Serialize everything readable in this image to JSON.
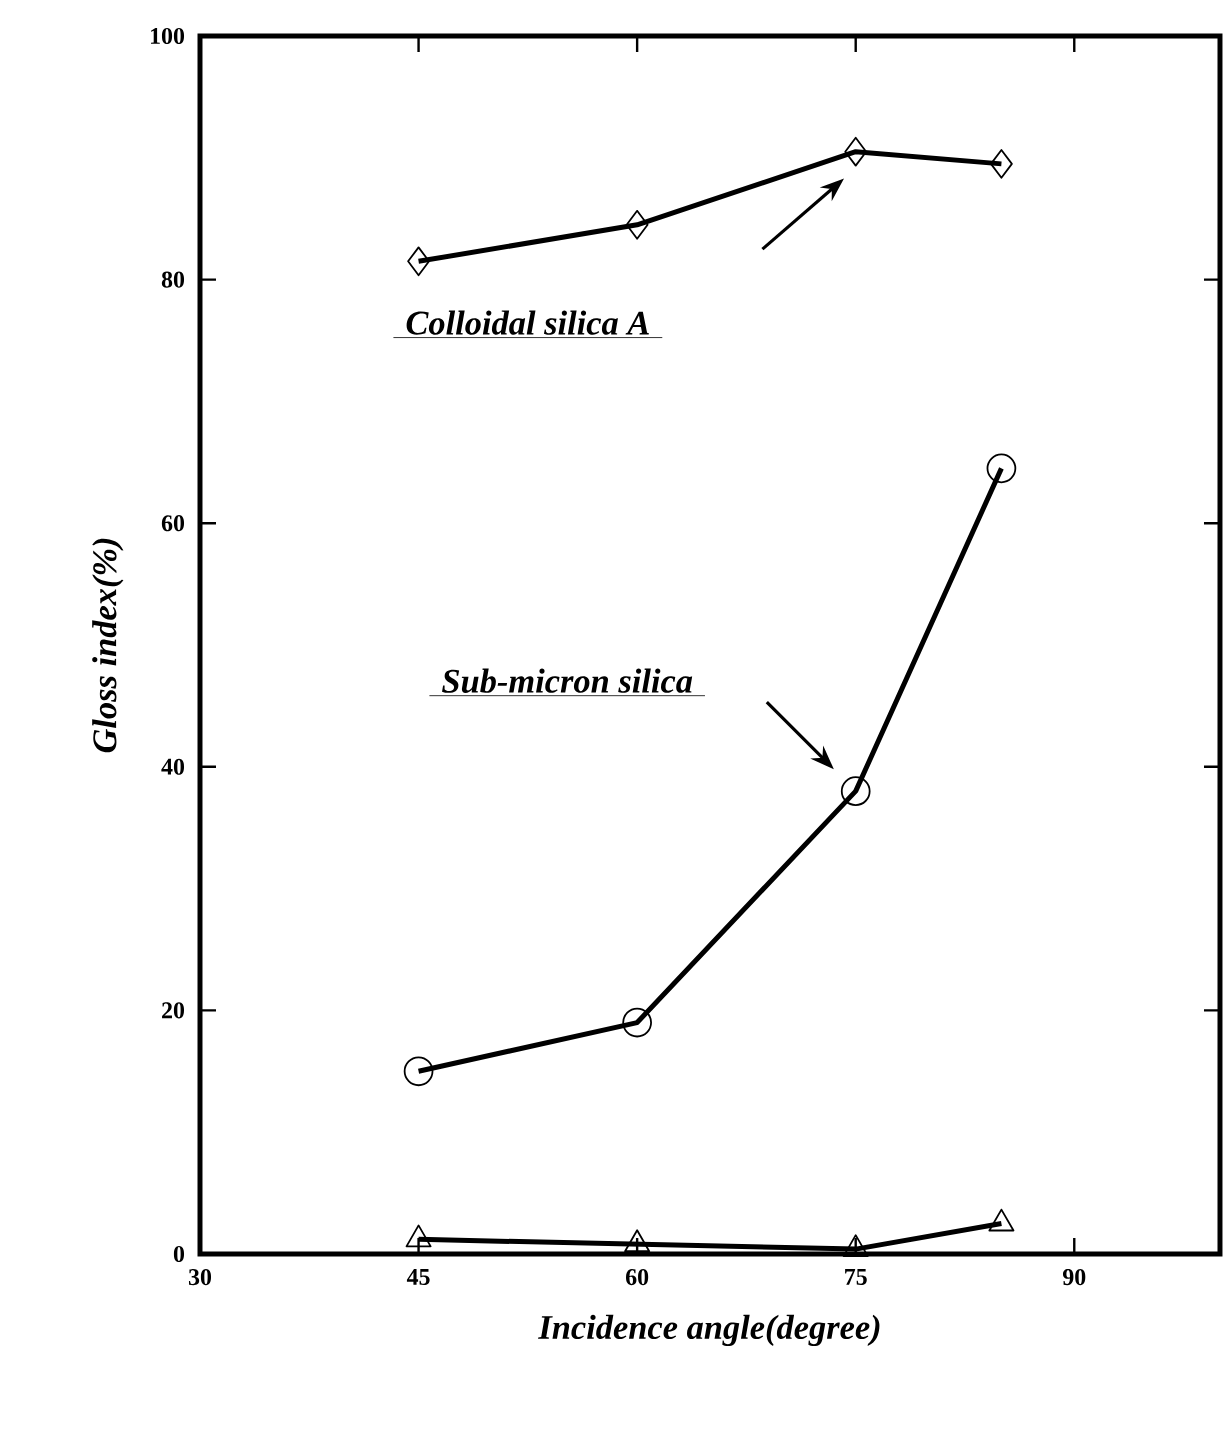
{
  "chart_data": {
    "type": "line",
    "xlabel": "Incidence angle(degree)",
    "ylabel": "Gloss index(%)",
    "x": [
      45,
      60,
      75,
      85
    ],
    "series": [
      {
        "color": "#000000",
        "marker": "diamond",
        "values": [
          81.5,
          84.5,
          90.5,
          89.5
        ]
      },
      {
        "color": "#000000",
        "marker": "circle",
        "values": [
          15,
          19,
          38,
          64.5
        ]
      },
      {
        "color": "#000000",
        "marker": "triangle",
        "values": [
          1.2,
          0.8,
          0.4,
          2.5
        ]
      }
    ],
    "annotations": [
      "Colloidal silica A",
      "Sub-micron silica"
    ],
    "xlim": [
      30,
      100
    ],
    "ylim": [
      0,
      100
    ],
    "xticks": [
      30,
      45,
      60,
      75,
      90
    ],
    "yticks": [
      0,
      20,
      40,
      60,
      80,
      100
    ],
    "grid": false,
    "line_style": "solid"
  }
}
